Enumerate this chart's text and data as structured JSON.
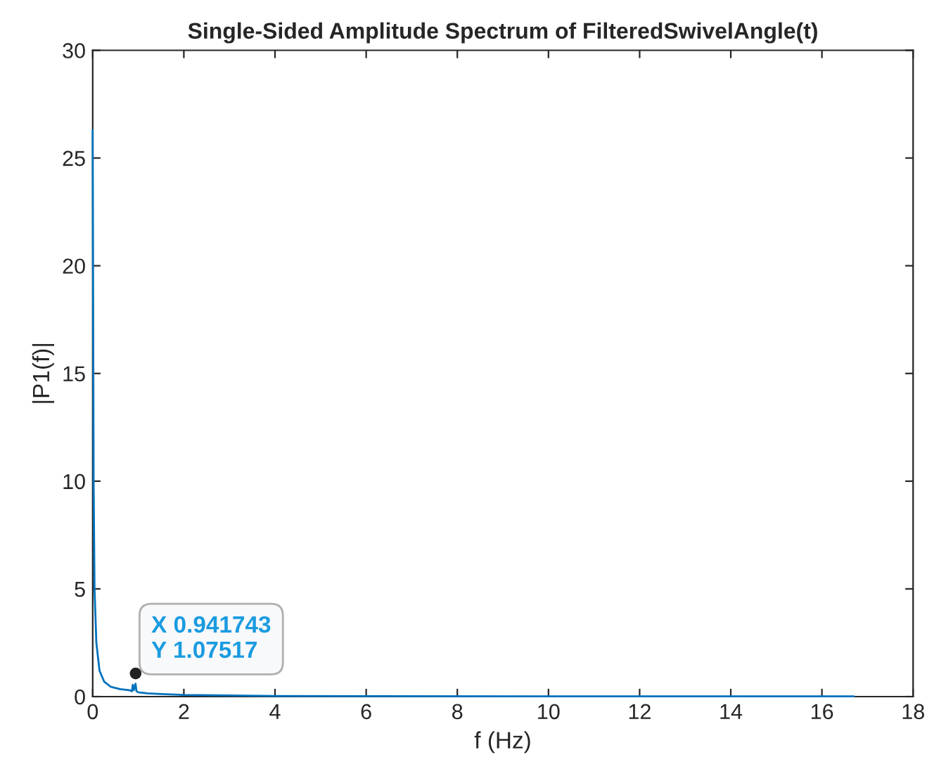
{
  "chart_data": {
    "type": "line",
    "title": "Single-Sided Amplitude Spectrum of FilteredSwivelAngle(t)",
    "xlabel": "f (Hz)",
    "ylabel": "|P1(f)|",
    "series": [
      {
        "color": "#0072bd",
        "x": [
          0,
          0.02,
          0.04,
          0.08,
          0.15,
          0.25,
          0.4,
          0.6,
          0.8,
          0.86,
          0.88,
          0.9,
          0.94,
          0.96,
          1.0,
          1.2,
          1.5,
          2,
          3,
          4,
          6,
          10,
          16.7
        ],
        "values": [
          26.3,
          10,
          5,
          2.5,
          1.2,
          0.7,
          0.45,
          0.35,
          0.3,
          0.25,
          0.55,
          0.3,
          0.6,
          0.25,
          0.2,
          0.15,
          0.12,
          0.08,
          0.05,
          0.03,
          0.02,
          0.01,
          0.01
        ]
      }
    ],
    "annotations": [
      {
        "text": "X 0.941743\nY 1.07517",
        "x": 0.941743,
        "y": 1.07517
      }
    ],
    "xlim": [
      0,
      18
    ],
    "ylim": [
      0,
      30
    ],
    "xticks": [
      0,
      2,
      4,
      6,
      8,
      10,
      12,
      14,
      16,
      18
    ],
    "yticks": [
      0,
      5,
      10,
      15,
      20,
      25,
      30
    ],
    "grid": false,
    "legend": false
  }
}
